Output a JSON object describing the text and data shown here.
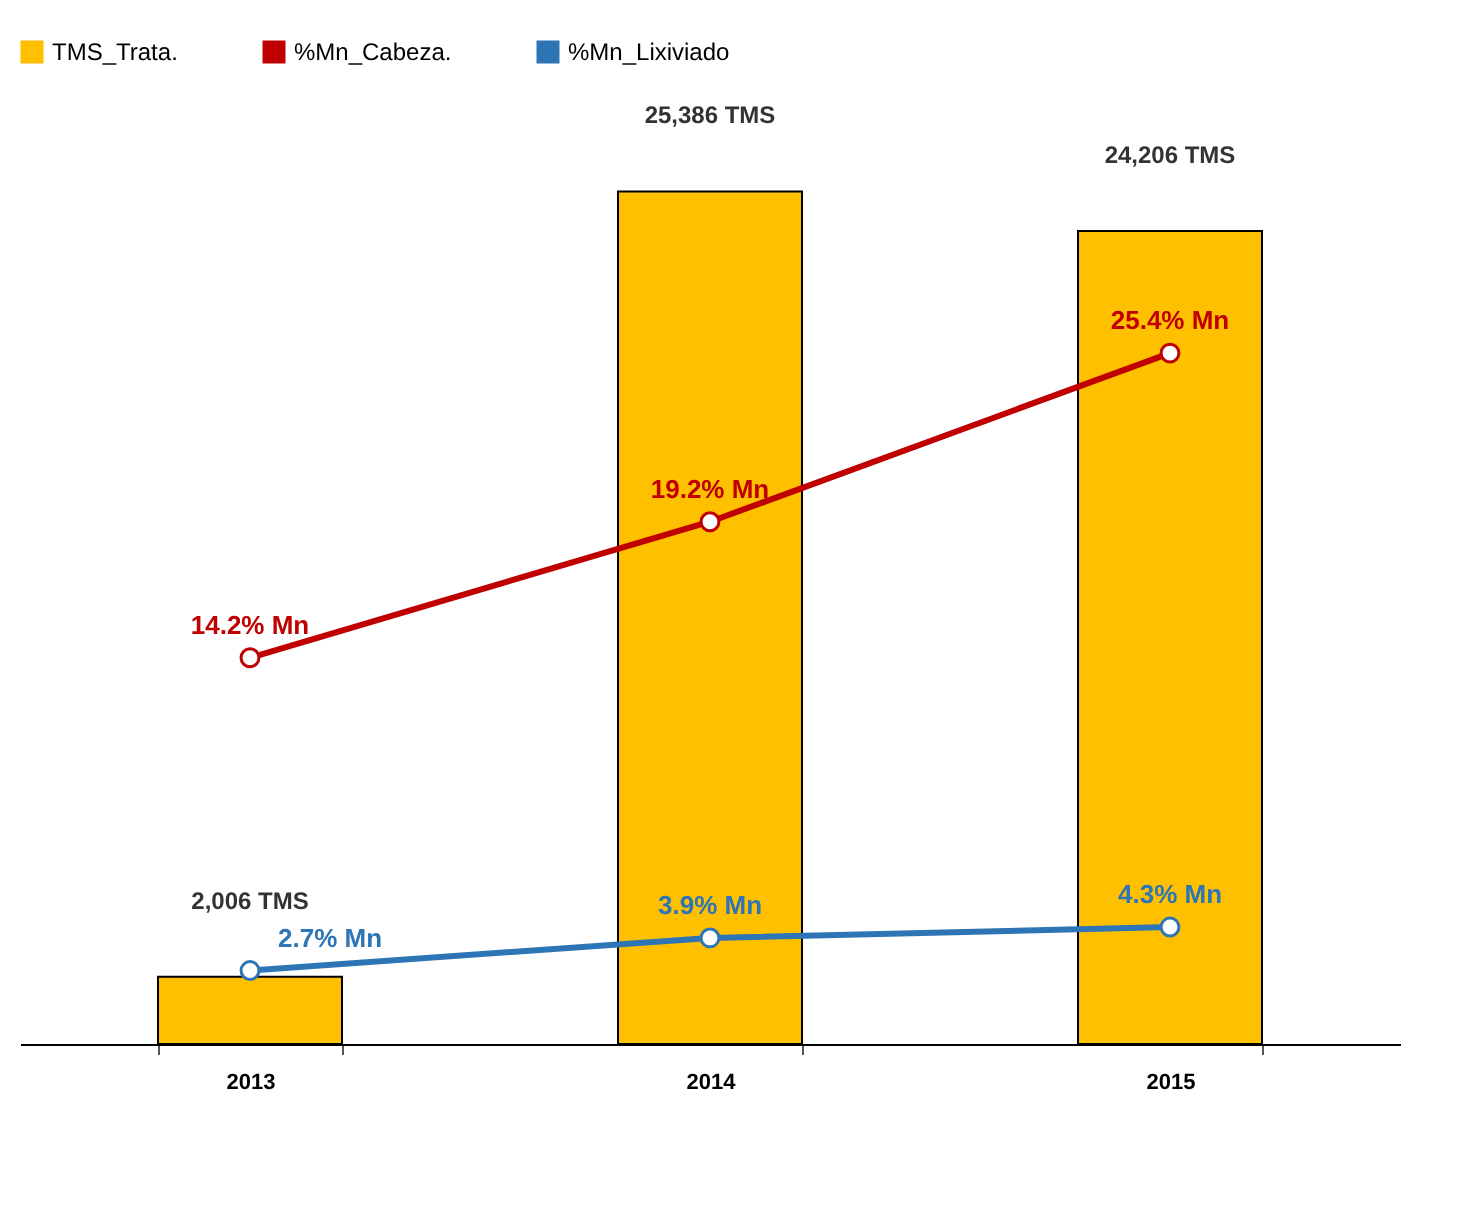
{
  "chart_data": {
    "type": "bar",
    "categories": [
      "2013",
      "2014",
      "2015"
    ],
    "legend": "top",
    "marker": "circle",
    "grid": false,
    "tick_labels": "x",
    "series": [
      {
        "name": "TMS_Trata.",
        "color": "#ffc000",
        "values": [
          2006,
          25386,
          24206
        ],
        "value_labels": [
          "2,006 TMS",
          "25,386 TMS",
          "24,206 TMS"
        ]
      },
      {
        "name": "%Mn_Cabeza.",
        "type": "line",
        "axis": "y2",
        "color": "#c00000",
        "values": [
          14.2,
          19.2,
          25.4
        ],
        "value_labels": [
          "14.2% Mn",
          "19.2% Mn",
          "25.4% Mn"
        ]
      },
      {
        "name": "%Mn_Lixiviado",
        "type": "line",
        "axis": "y2",
        "color": "#2e75b6",
        "values": [
          2.7,
          3.9,
          4.3
        ],
        "value_labels": [
          "2.7% Mn",
          "3.9% Mn",
          "4.3% Mn"
        ]
      }
    ]
  }
}
